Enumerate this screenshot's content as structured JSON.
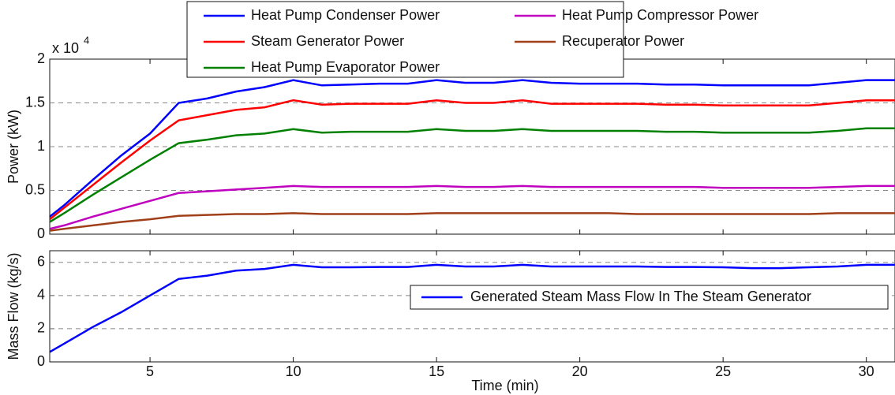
{
  "chart_data": [
    {
      "type": "line",
      "ylabel": "Power (kW)",
      "y_multiplier": {
        "base": "x 10",
        "exponent": "4"
      },
      "x": [
        1.5,
        2,
        3,
        4,
        5,
        6,
        7,
        8,
        9,
        10,
        11,
        12,
        13,
        14,
        15,
        16,
        17,
        18,
        19,
        20,
        21,
        22,
        23,
        24,
        25,
        26,
        27,
        28,
        29,
        30,
        31
      ],
      "xlim": [
        1.5,
        31
      ],
      "xticks": [
        5,
        10,
        15,
        20,
        25,
        30
      ],
      "xtick_labels": false,
      "ylim": [
        0,
        2
      ],
      "yticks": [
        0,
        0.5,
        1,
        1.5,
        2
      ],
      "grid": true,
      "legend": "top",
      "series": [
        {
          "name": "Heat Pump Condenser Power",
          "color": "#0000ff",
          "values": [
            0.2,
            0.33,
            0.62,
            0.9,
            1.15,
            1.5,
            1.55,
            1.63,
            1.68,
            1.76,
            1.7,
            1.71,
            1.72,
            1.72,
            1.76,
            1.73,
            1.73,
            1.76,
            1.73,
            1.72,
            1.72,
            1.72,
            1.71,
            1.71,
            1.7,
            1.7,
            1.7,
            1.7,
            1.73,
            1.76,
            1.76
          ]
        },
        {
          "name": "Heat Pump Compressor Power",
          "color": "#bf00bf",
          "values": [
            0.06,
            0.1,
            0.2,
            0.29,
            0.38,
            0.47,
            0.49,
            0.51,
            0.53,
            0.55,
            0.54,
            0.54,
            0.54,
            0.54,
            0.55,
            0.54,
            0.54,
            0.55,
            0.54,
            0.54,
            0.54,
            0.54,
            0.54,
            0.54,
            0.53,
            0.53,
            0.53,
            0.53,
            0.54,
            0.55,
            0.55
          ]
        },
        {
          "name": "Steam Generator Power",
          "color": "#ff0000",
          "values": [
            0.17,
            0.3,
            0.56,
            0.82,
            1.07,
            1.3,
            1.36,
            1.42,
            1.45,
            1.53,
            1.48,
            1.49,
            1.49,
            1.49,
            1.53,
            1.5,
            1.5,
            1.53,
            1.49,
            1.49,
            1.49,
            1.49,
            1.48,
            1.48,
            1.47,
            1.47,
            1.47,
            1.47,
            1.5,
            1.53,
            1.53
          ]
        },
        {
          "name": "Recuperator Power",
          "color": "#a0401a",
          "values": [
            0.04,
            0.06,
            0.1,
            0.14,
            0.17,
            0.21,
            0.22,
            0.23,
            0.23,
            0.24,
            0.23,
            0.23,
            0.23,
            0.23,
            0.24,
            0.24,
            0.24,
            0.24,
            0.24,
            0.24,
            0.24,
            0.23,
            0.23,
            0.23,
            0.23,
            0.23,
            0.23,
            0.23,
            0.24,
            0.24,
            0.24
          ]
        },
        {
          "name": "Heat Pump Evaporator Power",
          "color": "#008000",
          "values": [
            0.14,
            0.24,
            0.45,
            0.65,
            0.85,
            1.04,
            1.08,
            1.13,
            1.15,
            1.2,
            1.16,
            1.17,
            1.17,
            1.17,
            1.2,
            1.18,
            1.18,
            1.2,
            1.18,
            1.18,
            1.18,
            1.18,
            1.17,
            1.17,
            1.16,
            1.16,
            1.16,
            1.16,
            1.18,
            1.21,
            1.21
          ]
        }
      ]
    },
    {
      "type": "line",
      "xlabel": "Time (min)",
      "ylabel": "Mass Flow (kg/s)",
      "x": [
        1.5,
        2,
        3,
        4,
        5,
        6,
        7,
        8,
        9,
        10,
        11,
        12,
        13,
        14,
        15,
        16,
        17,
        18,
        19,
        20,
        21,
        22,
        23,
        24,
        25,
        26,
        27,
        28,
        29,
        30,
        31
      ],
      "xlim": [
        1.5,
        31
      ],
      "xticks": [
        5,
        10,
        15,
        20,
        25,
        30
      ],
      "xtick_labels": true,
      "ylim": [
        0,
        6.7
      ],
      "yticks": [
        0,
        2,
        4,
        6
      ],
      "grid": true,
      "legend": "right",
      "series": [
        {
          "name": "Generated Steam Mass Flow In The Steam Generator",
          "color": "#0000ff",
          "values": [
            0.6,
            1.1,
            2.1,
            3.0,
            4.0,
            5.0,
            5.2,
            5.5,
            5.6,
            5.85,
            5.7,
            5.7,
            5.72,
            5.72,
            5.85,
            5.75,
            5.75,
            5.85,
            5.75,
            5.75,
            5.75,
            5.75,
            5.72,
            5.72,
            5.7,
            5.65,
            5.65,
            5.7,
            5.75,
            5.85,
            5.85
          ]
        }
      ]
    }
  ]
}
